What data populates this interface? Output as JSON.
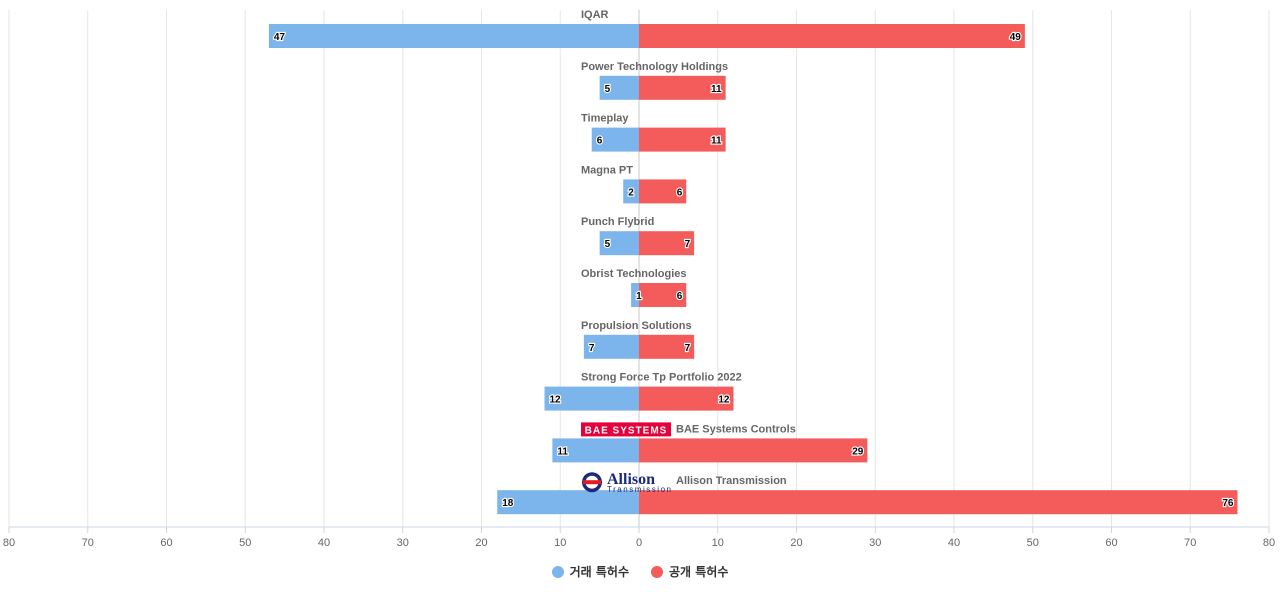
{
  "chart_data": {
    "type": "bar",
    "orientation": "horizontal-diverging",
    "categories": [
      "IQAR",
      "Power Technology Holdings",
      "Timeplay",
      "Magna PT",
      "Punch Flybrid",
      "Obrist Technologies",
      "Propulsion Solutions",
      "Strong Force Tp Portfolio 2022",
      "BAE Systems Controls",
      "Allison Transmission"
    ],
    "logos": {
      "BAE Systems Controls": {
        "text": "BAE SYSTEMS",
        "color": "#e4003b"
      },
      "Allison Transmission": {
        "text": "Allison",
        "subtext": "Transmission",
        "color": "#1b2a7a",
        "accent": "#e31b23"
      }
    },
    "series": [
      {
        "name": "거래 특허수",
        "color": "#7cb5ec",
        "side": "left",
        "values": [
          47,
          5,
          6,
          2,
          5,
          1,
          7,
          12,
          11,
          18
        ]
      },
      {
        "name": "공개 특허수",
        "color": "#f45b5b",
        "side": "right",
        "values": [
          49,
          11,
          11,
          6,
          7,
          6,
          7,
          12,
          29,
          76
        ]
      }
    ],
    "xlim": [
      -80,
      80
    ],
    "x_ticks": [
      "80",
      "70",
      "60",
      "50",
      "40",
      "30",
      "20",
      "10",
      "0",
      "10",
      "20",
      "30",
      "40",
      "50",
      "60",
      "70",
      "80"
    ],
    "grid": true,
    "legend_position": "bottom-center"
  }
}
